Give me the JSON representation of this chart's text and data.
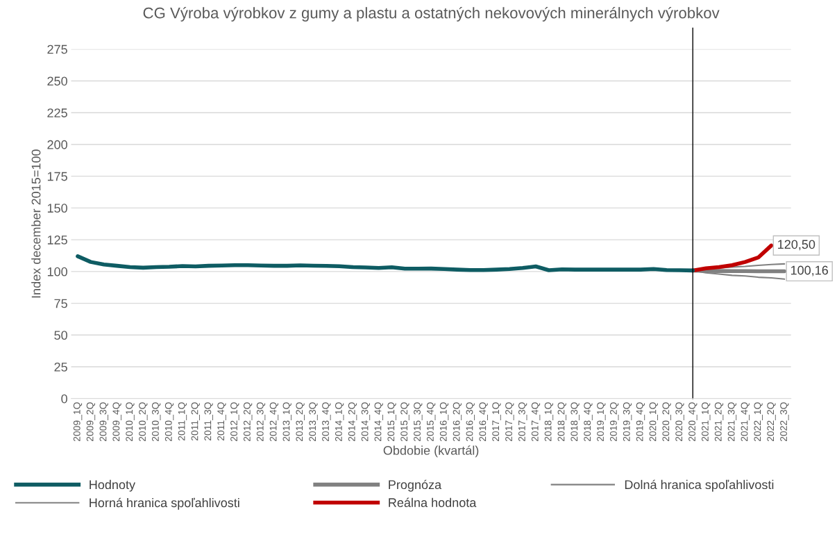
{
  "chart_data": {
    "type": "line",
    "title": "CG Výroba výrobkov z gumy a plastu a ostatných nekovových minerálnych výrobkov",
    "xlabel": "Obdobie (kvartál)",
    "ylabel": "Index december 2015=100",
    "categories": [
      "2009_1Q",
      "2009_2Q",
      "2009_3Q",
      "2009_4Q",
      "2010_1Q",
      "2010_2Q",
      "2010_3Q",
      "2010_4Q",
      "2011_1Q",
      "2011_2Q",
      "2011_3Q",
      "2011_4Q",
      "2012_1Q",
      "2012_2Q",
      "2012_3Q",
      "2012_4Q",
      "2013_1Q",
      "2013_2Q",
      "2013_3Q",
      "2013_4Q",
      "2014_1Q",
      "2014_2Q",
      "2014_3Q",
      "2014_4Q",
      "2015_1Q",
      "2015_2Q",
      "2015_3Q",
      "2015_4Q",
      "2016_1Q",
      "2016_2Q",
      "2016_3Q",
      "2016_4Q",
      "2017_1Q",
      "2017_2Q",
      "2017_3Q",
      "2017_4Q",
      "2018_1Q",
      "2018_2Q",
      "2018_3Q",
      "2018_4Q",
      "2019_1Q",
      "2019_2Q",
      "2019_3Q",
      "2019_4Q",
      "2020_1Q",
      "2020_2Q",
      "2020_3Q",
      "2020_4Q",
      "2021_1Q",
      "2021_2Q",
      "2021_3Q",
      "2021_4Q",
      "2022_1Q",
      "2022_2Q",
      "2022_3Q"
    ],
    "series": [
      {
        "name": "Hodnoty",
        "color": "#0e5c63",
        "values": [
          112,
          107.5,
          105.5,
          104.5,
          103.5,
          103,
          103.5,
          103.7,
          104.3,
          104,
          104.5,
          104.7,
          105,
          105,
          104.7,
          104.5,
          104.5,
          104.8,
          104.6,
          104.4,
          104.2,
          103.5,
          103.2,
          102.8,
          103.3,
          102.2,
          102.2,
          102.3,
          102,
          101.5,
          101.2,
          101.2,
          101.5,
          102,
          102.8,
          104,
          101,
          101.7,
          101.5,
          101.5,
          101.5,
          101.5,
          101.5,
          101.5,
          102,
          101.2,
          101,
          100.8,
          null,
          null,
          null,
          null,
          null,
          null,
          null
        ]
      },
      {
        "name": "Prognóza",
        "color": "#808080",
        "values": [
          null,
          null,
          null,
          null,
          null,
          null,
          null,
          null,
          null,
          null,
          null,
          null,
          null,
          null,
          null,
          null,
          null,
          null,
          null,
          null,
          null,
          null,
          null,
          null,
          null,
          null,
          null,
          null,
          null,
          null,
          null,
          null,
          null,
          null,
          null,
          null,
          null,
          null,
          null,
          null,
          null,
          null,
          null,
          null,
          null,
          null,
          null,
          100.8,
          100.5,
          100.4,
          100.3,
          100.3,
          100.2,
          100.2,
          100.16
        ],
        "value_labels": [
          null,
          null,
          null,
          null,
          null,
          null,
          null,
          null,
          null,
          null,
          null,
          null,
          null,
          null,
          null,
          null,
          null,
          null,
          null,
          null,
          null,
          null,
          null,
          null,
          null,
          null,
          null,
          null,
          null,
          null,
          null,
          null,
          null,
          null,
          null,
          null,
          null,
          null,
          null,
          null,
          null,
          null,
          null,
          null,
          null,
          null,
          null,
          null,
          null,
          null,
          null,
          null,
          null,
          null,
          "100,16"
        ]
      },
      {
        "name": "Dolná hranica spoľahlivosti",
        "color": "#808080",
        "values": [
          null,
          null,
          null,
          null,
          null,
          null,
          null,
          null,
          null,
          null,
          null,
          null,
          null,
          null,
          null,
          null,
          null,
          null,
          null,
          null,
          null,
          null,
          null,
          null,
          null,
          null,
          null,
          null,
          null,
          null,
          null,
          null,
          null,
          null,
          null,
          null,
          null,
          null,
          null,
          null,
          null,
          null,
          null,
          null,
          null,
          null,
          null,
          100.8,
          99,
          98,
          97,
          96.5,
          95.5,
          95,
          94
        ]
      },
      {
        "name": "Horná hranica spoľahlivosti",
        "color": "#808080",
        "values": [
          null,
          null,
          null,
          null,
          null,
          null,
          null,
          null,
          null,
          null,
          null,
          null,
          null,
          null,
          null,
          null,
          null,
          null,
          null,
          null,
          null,
          null,
          null,
          null,
          null,
          null,
          null,
          null,
          null,
          null,
          null,
          null,
          null,
          null,
          null,
          null,
          null,
          null,
          null,
          null,
          null,
          null,
          null,
          null,
          null,
          null,
          null,
          100.8,
          102,
          102.8,
          103.5,
          104,
          104.8,
          105.5,
          106
        ]
      },
      {
        "name": "Reálna hodnota",
        "color": "#c00000",
        "values": [
          null,
          null,
          null,
          null,
          null,
          null,
          null,
          null,
          null,
          null,
          null,
          null,
          null,
          null,
          null,
          null,
          null,
          null,
          null,
          null,
          null,
          null,
          null,
          null,
          null,
          null,
          null,
          null,
          null,
          null,
          null,
          null,
          null,
          null,
          null,
          null,
          null,
          null,
          null,
          null,
          null,
          null,
          null,
          null,
          null,
          null,
          null,
          100.8,
          102.5,
          103.5,
          105,
          107.5,
          111,
          120.5,
          null
        ],
        "value_labels": [
          null,
          null,
          null,
          null,
          null,
          null,
          null,
          null,
          null,
          null,
          null,
          null,
          null,
          null,
          null,
          null,
          null,
          null,
          null,
          null,
          null,
          null,
          null,
          null,
          null,
          null,
          null,
          null,
          null,
          null,
          null,
          null,
          null,
          null,
          null,
          null,
          null,
          null,
          null,
          null,
          null,
          null,
          null,
          null,
          null,
          null,
          null,
          null,
          null,
          null,
          null,
          null,
          null,
          "120,50",
          null
        ]
      }
    ],
    "ylim": [
      0,
      275
    ],
    "yticks": [
      0,
      25,
      50,
      75,
      100,
      125,
      150,
      175,
      200,
      225,
      250,
      275
    ],
    "grid": "y",
    "legend": "bottom",
    "marker": "none",
    "line_style": "solid",
    "ref_lines": [
      {
        "axis": "x",
        "value": "2020_4Q",
        "color": "#000000"
      }
    ]
  }
}
